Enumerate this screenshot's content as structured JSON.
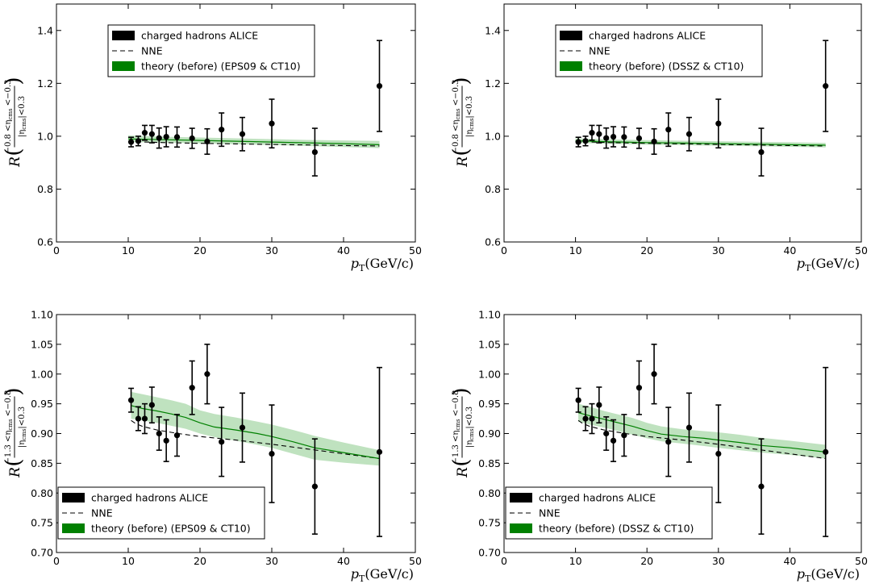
{
  "chart_data": [
    {
      "type": "scatter",
      "xlim": [
        0,
        50
      ],
      "ylim": [
        0.6,
        1.5
      ],
      "xticks": [
        "0",
        "10",
        "20",
        "30",
        "40",
        "50"
      ],
      "yticks": [
        "0.6",
        "0.8",
        "1.0",
        "1.2",
        "1.4"
      ],
      "xlabel": {
        "main": "p",
        "sub": "T",
        "unit": "(GeV/c)"
      },
      "ylabel": {
        "main": "R",
        "num": "−0.8 <η",
        "numsub": "cms",
        "numtail": " <−0.3",
        "den": "|η",
        "densub": "cms",
        "dentail": "|<0.3"
      },
      "legend": {
        "position": "top-left",
        "entries": [
          "charged hadrons ALICE",
          "NNE",
          "theory (before)  (EPS09 & CT10)"
        ]
      },
      "data_series": {
        "name": "charged hadrons ALICE",
        "x": [
          10.4,
          11.4,
          12.3,
          13.3,
          14.3,
          15.3,
          16.8,
          18.9,
          21.0,
          23.0,
          25.9,
          30.0,
          36.0,
          45.0
        ],
        "y": [
          0.978,
          0.982,
          1.013,
          1.008,
          0.993,
          0.998,
          0.997,
          0.992,
          0.98,
          1.025,
          1.008,
          1.048,
          0.94,
          1.19
        ],
        "err": [
          0.018,
          0.018,
          0.028,
          0.033,
          0.038,
          0.038,
          0.038,
          0.038,
          0.048,
          0.063,
          0.063,
          0.092,
          0.09,
          0.172
        ]
      },
      "nne": {
        "x": [
          10,
          15,
          20,
          25,
          30,
          35,
          40,
          45
        ],
        "y": [
          0.98,
          0.976,
          0.973,
          0.971,
          0.969,
          0.967,
          0.965,
          0.963
        ]
      },
      "theory": {
        "x": [
          10,
          15,
          20,
          25,
          30,
          35,
          40,
          45
        ],
        "y": [
          0.99,
          0.987,
          0.984,
          0.981,
          0.978,
          0.975,
          0.972,
          0.968
        ],
        "lo": [
          0.978,
          0.976,
          0.973,
          0.97,
          0.967,
          0.963,
          0.959,
          0.955
        ],
        "hi": [
          1.003,
          0.998,
          0.995,
          0.992,
          0.989,
          0.986,
          0.984,
          0.982
        ]
      }
    },
    {
      "type": "scatter",
      "xlim": [
        0,
        50
      ],
      "ylim": [
        0.6,
        1.5
      ],
      "xticks": [
        "0",
        "10",
        "20",
        "30",
        "40",
        "50"
      ],
      "yticks": [
        "0.6",
        "0.8",
        "1.0",
        "1.2",
        "1.4"
      ],
      "xlabel": {
        "main": "p",
        "sub": "T",
        "unit": "(GeV/c)"
      },
      "ylabel": {
        "main": "R",
        "num": "−0.8 <η",
        "numsub": "cms",
        "numtail": " <−0.3",
        "den": "|η",
        "densub": "cms",
        "dentail": "|<0.3"
      },
      "legend": {
        "position": "top-left",
        "entries": [
          "charged hadrons ALICE",
          "NNE",
          "theory (before)  (DSSZ & CT10)"
        ]
      },
      "data_series": {
        "name": "charged hadrons ALICE",
        "x": [
          10.4,
          11.4,
          12.3,
          13.3,
          14.3,
          15.3,
          16.8,
          18.9,
          21.0,
          23.0,
          25.9,
          30.0,
          36.0,
          45.0
        ],
        "y": [
          0.978,
          0.982,
          1.013,
          1.008,
          0.993,
          0.998,
          0.997,
          0.992,
          0.98,
          1.025,
          1.008,
          1.048,
          0.94,
          1.19
        ],
        "err": [
          0.018,
          0.018,
          0.028,
          0.033,
          0.038,
          0.038,
          0.038,
          0.038,
          0.048,
          0.063,
          0.063,
          0.092,
          0.09,
          0.172
        ]
      },
      "nne": {
        "x": [
          10,
          15,
          20,
          25,
          30,
          35,
          40,
          45
        ],
        "y": [
          0.98,
          0.976,
          0.973,
          0.971,
          0.969,
          0.967,
          0.965,
          0.963
        ]
      },
      "theory": {
        "x": [
          10,
          15,
          20,
          25,
          30,
          35,
          40,
          45
        ],
        "y": [
          0.983,
          0.979,
          0.976,
          0.974,
          0.972,
          0.97,
          0.968,
          0.966
        ],
        "lo": [
          0.975,
          0.971,
          0.968,
          0.966,
          0.964,
          0.962,
          0.96,
          0.958
        ],
        "hi": [
          0.992,
          0.988,
          0.985,
          0.983,
          0.981,
          0.979,
          0.977,
          0.975
        ]
      }
    },
    {
      "type": "scatter",
      "xlim": [
        0,
        50
      ],
      "ylim": [
        0.7,
        1.1
      ],
      "xticks": [
        "0",
        "10",
        "20",
        "30",
        "40",
        "50"
      ],
      "yticks": [
        "0.70",
        "0.75",
        "0.80",
        "0.85",
        "0.90",
        "0.95",
        "1.00",
        "1.05",
        "1.10"
      ],
      "xlabel": {
        "main": "p",
        "sub": "T",
        "unit": "(GeV/c)"
      },
      "ylabel": {
        "main": "R",
        "num": "−1.3 <η",
        "numsub": "cms",
        "numtail": " <−0.8",
        "den": "|η",
        "densub": "cms",
        "dentail": "|<0.3"
      },
      "legend": {
        "position": "bottom-left",
        "entries": [
          "charged hadrons ALICE",
          "NNE",
          "theory (before)  (EPS09 & CT10)"
        ]
      },
      "data_series": {
        "name": "charged hadrons ALICE",
        "x": [
          10.4,
          11.4,
          12.3,
          13.3,
          14.3,
          15.3,
          16.8,
          18.9,
          21.0,
          23.0,
          25.9,
          30.0,
          36.0,
          45.0
        ],
        "y": [
          0.956,
          0.925,
          0.925,
          0.948,
          0.9,
          0.888,
          0.897,
          0.977,
          1.0,
          0.886,
          0.91,
          0.866,
          0.811,
          0.869
        ],
        "err": [
          0.02,
          0.02,
          0.025,
          0.03,
          0.028,
          0.035,
          0.035,
          0.045,
          0.05,
          0.058,
          0.058,
          0.082,
          0.08,
          0.142
        ]
      },
      "nne": {
        "x": [
          10.4,
          11,
          12,
          14,
          17,
          20,
          25,
          30,
          35,
          40,
          45
        ],
        "y": [
          0.922,
          0.917,
          0.912,
          0.906,
          0.9,
          0.895,
          0.889,
          0.882,
          0.874,
          0.866,
          0.858
        ]
      },
      "theory": {
        "x": [
          10.4,
          12,
          14,
          16,
          18,
          20,
          22,
          25,
          28,
          30,
          33,
          36,
          40,
          45
        ],
        "y": [
          0.947,
          0.942,
          0.938,
          0.933,
          0.927,
          0.918,
          0.911,
          0.906,
          0.9,
          0.895,
          0.886,
          0.876,
          0.868,
          0.858
        ],
        "lo": [
          0.925,
          0.922,
          0.918,
          0.913,
          0.908,
          0.9,
          0.894,
          0.888,
          0.881,
          0.876,
          0.866,
          0.856,
          0.851,
          0.846
        ],
        "hi": [
          0.97,
          0.966,
          0.961,
          0.956,
          0.95,
          0.939,
          0.933,
          0.927,
          0.92,
          0.915,
          0.906,
          0.896,
          0.885,
          0.872
        ]
      }
    },
    {
      "type": "scatter",
      "xlim": [
        0,
        50
      ],
      "ylim": [
        0.7,
        1.1
      ],
      "xticks": [
        "0",
        "10",
        "20",
        "30",
        "40",
        "50"
      ],
      "yticks": [
        "0.70",
        "0.75",
        "0.80",
        "0.85",
        "0.90",
        "0.95",
        "1.00",
        "1.05",
        "1.10"
      ],
      "xlabel": {
        "main": "p",
        "sub": "T",
        "unit": "(GeV/c)"
      },
      "ylabel": {
        "main": "R",
        "num": "−1.3 <η",
        "numsub": "cms",
        "numtail": " <−0.8",
        "den": "|η",
        "densub": "cms",
        "dentail": "|<0.3"
      },
      "legend": {
        "position": "bottom-left",
        "entries": [
          "charged hadrons ALICE",
          "NNE",
          "theory (before)  (DSSZ & CT10)"
        ]
      },
      "data_series": {
        "name": "charged hadrons ALICE",
        "x": [
          10.4,
          11.4,
          12.3,
          13.3,
          14.3,
          15.3,
          16.8,
          18.9,
          21.0,
          23.0,
          25.9,
          30.0,
          36.0,
          45.0
        ],
        "y": [
          0.956,
          0.925,
          0.925,
          0.948,
          0.9,
          0.888,
          0.897,
          0.977,
          1.0,
          0.886,
          0.91,
          0.866,
          0.811,
          0.869
        ],
        "err": [
          0.02,
          0.02,
          0.025,
          0.03,
          0.028,
          0.035,
          0.035,
          0.045,
          0.05,
          0.058,
          0.058,
          0.082,
          0.08,
          0.142
        ]
      },
      "nne": {
        "x": [
          10.4,
          11,
          12,
          14,
          17,
          20,
          25,
          30,
          35,
          40,
          45
        ],
        "y": [
          0.922,
          0.917,
          0.912,
          0.906,
          0.9,
          0.895,
          0.889,
          0.882,
          0.874,
          0.866,
          0.858
        ]
      },
      "theory": {
        "x": [
          10.4,
          12,
          14,
          16,
          18,
          20,
          22,
          25,
          28,
          30,
          33,
          36,
          40,
          45
        ],
        "y": [
          0.935,
          0.93,
          0.924,
          0.918,
          0.912,
          0.905,
          0.899,
          0.895,
          0.892,
          0.889,
          0.885,
          0.88,
          0.876,
          0.869
        ],
        "lo": [
          0.92,
          0.915,
          0.91,
          0.904,
          0.898,
          0.892,
          0.887,
          0.883,
          0.879,
          0.876,
          0.872,
          0.868,
          0.864,
          0.858
        ],
        "hi": [
          0.95,
          0.945,
          0.938,
          0.932,
          0.926,
          0.918,
          0.912,
          0.907,
          0.904,
          0.902,
          0.898,
          0.893,
          0.888,
          0.881
        ]
      }
    }
  ],
  "colors": {
    "theory_line": "#008000",
    "theory_band": "#bfe2bf",
    "data": "#000000"
  }
}
